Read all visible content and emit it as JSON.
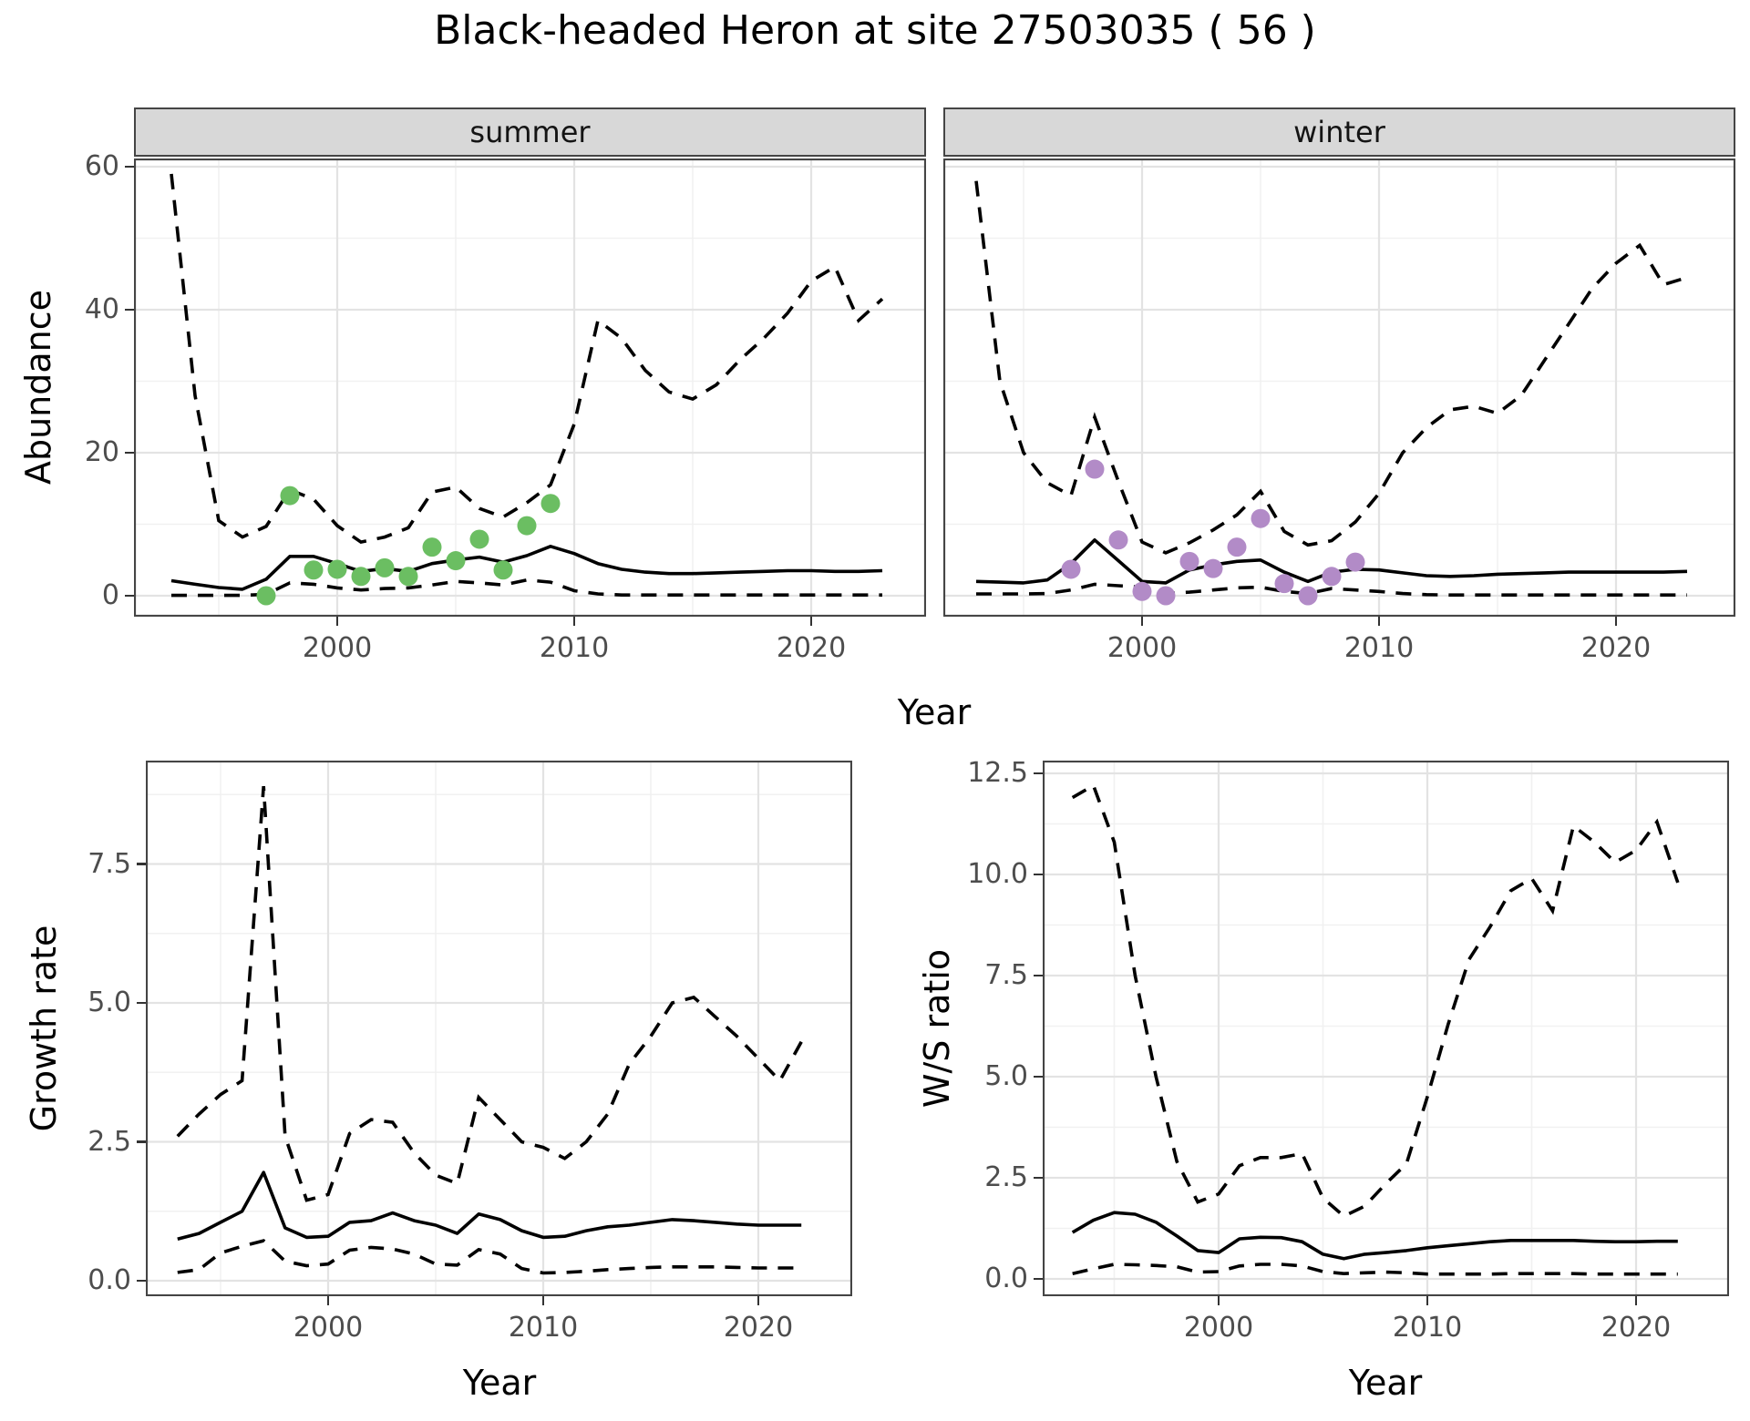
{
  "title": "Black-headed Heron at site 27503035 ( 56 )",
  "colors": {
    "summer_points": "#6BBE62",
    "winter_points": "#B28BC7",
    "line": "#000000",
    "grid_major": "#E3E3E3",
    "grid_minor": "#F1F1F1",
    "panel_border": "#454545",
    "tick_label": "#4D4D4D",
    "strip_bg": "#D8D8D8"
  },
  "chart_data": [
    {
      "type": "line",
      "facet": "summer",
      "xlabel": "Year",
      "ylabel": "Abundance",
      "x_ticks": [
        "2000",
        "2010",
        "2020"
      ],
      "y_ticks": [
        "0",
        "20",
        "40",
        "60"
      ],
      "x_range": [
        1993,
        2023
      ],
      "y_range": [
        0,
        60
      ],
      "years": [
        1993,
        1994,
        1995,
        1996,
        1997,
        1998,
        1999,
        2000,
        2001,
        2002,
        2003,
        2004,
        2005,
        2006,
        2007,
        2008,
        2009,
        2010,
        2011,
        2012,
        2013,
        2014,
        2015,
        2016,
        2017,
        2018,
        2019,
        2020,
        2021,
        2022,
        2023
      ],
      "upper_ci": [
        59,
        28,
        10.5,
        8.2,
        9.7,
        14.8,
        13.5,
        9.8,
        7.5,
        8.2,
        9.5,
        14.5,
        15.2,
        12.2,
        11,
        13,
        15.5,
        24,
        38.5,
        36,
        31.5,
        28.5,
        27.5,
        29.5,
        33,
        36,
        39.5,
        44,
        46,
        38.5,
        41.5
      ],
      "fit": [
        2.1,
        1.6,
        1.15,
        0.9,
        2.3,
        5.5,
        5.5,
        4.5,
        3.4,
        3.8,
        3.4,
        4.5,
        5,
        5.4,
        4.7,
        5.6,
        6.9,
        5.9,
        4.5,
        3.7,
        3.3,
        3.1,
        3.1,
        3.2,
        3.3,
        3.4,
        3.5,
        3.5,
        3.4,
        3.4,
        3.5
      ],
      "lower_ci": [
        0.05,
        0.05,
        0.05,
        0.05,
        0.2,
        1.8,
        1.6,
        1.1,
        0.8,
        1,
        1.1,
        1.5,
        2,
        1.8,
        1.5,
        2.2,
        1.9,
        0.7,
        0.25,
        0.1,
        0.1,
        0.1,
        0.1,
        0.1,
        0.1,
        0.1,
        0.1,
        0.1,
        0.1,
        0.1,
        0.1
      ],
      "obs_years": [
        1997,
        1998,
        1999,
        2000,
        2001,
        2002,
        2003,
        2004,
        2005,
        2006,
        2007,
        2008,
        2009
      ],
      "obs_values": [
        0,
        14,
        3.6,
        3.7,
        2.7,
        3.9,
        2.7,
        6.8,
        4.9,
        7.9,
        3.6,
        9.8,
        12.9
      ]
    },
    {
      "type": "line",
      "facet": "winter",
      "xlabel": "Year",
      "ylabel": "Abundance",
      "x_ticks": [
        "2000",
        "2010",
        "2020"
      ],
      "y_ticks": [
        "0",
        "20",
        "40",
        "60"
      ],
      "x_range": [
        1993,
        2023
      ],
      "y_range": [
        0,
        60
      ],
      "years": [
        1993,
        1994,
        1995,
        1996,
        1997,
        1998,
        1999,
        2000,
        2001,
        2002,
        2003,
        2004,
        2005,
        2006,
        2007,
        2008,
        2009,
        2010,
        2011,
        2012,
        2013,
        2014,
        2015,
        2016,
        2017,
        2018,
        2019,
        2020,
        2021,
        2022,
        2023
      ],
      "upper_ci": [
        58,
        30,
        20,
        15.8,
        14,
        25,
        16,
        7.5,
        6,
        7.4,
        9.2,
        11.3,
        14.6,
        9,
        7.1,
        7.7,
        10.3,
        14.3,
        20,
        23.5,
        26,
        26.5,
        25.5,
        28,
        33,
        38,
        43,
        46.5,
        49,
        43.5,
        44.5
      ],
      "fit": [
        2,
        1.9,
        1.8,
        2.2,
        4.5,
        7.8,
        4.9,
        2,
        1.8,
        3.6,
        4.3,
        4.8,
        5,
        3.3,
        2,
        3.3,
        3.7,
        3.6,
        3.2,
        2.8,
        2.7,
        2.8,
        3,
        3.1,
        3.2,
        3.3,
        3.3,
        3.3,
        3.3,
        3.3,
        3.4
      ],
      "lower_ci": [
        0.25,
        0.25,
        0.25,
        0.3,
        0.8,
        1.6,
        1.4,
        1.2,
        0.3,
        0.5,
        0.8,
        1.1,
        1.2,
        0.6,
        0.3,
        1,
        0.8,
        0.6,
        0.3,
        0.15,
        0.1,
        0.1,
        0.1,
        0.1,
        0.1,
        0.1,
        0.1,
        0.1,
        0.1,
        0.1,
        0.1
      ],
      "obs_years": [
        1997,
        1998,
        1999,
        2000,
        2001,
        2002,
        2003,
        2004,
        2005,
        2006,
        2007,
        2008,
        2009
      ],
      "obs_values": [
        3.7,
        17.7,
        7.8,
        0.6,
        0,
        4.8,
        3.8,
        6.8,
        10.8,
        1.7,
        0,
        2.7,
        4.7
      ]
    },
    {
      "type": "line",
      "facet": "",
      "xlabel": "Year",
      "ylabel": "Growth rate",
      "x_ticks": [
        "2000",
        "2010",
        "2020"
      ],
      "y_ticks": [
        "0.0",
        "2.5",
        "5.0",
        "7.5"
      ],
      "x_range": [
        1993,
        2022
      ],
      "y_range": [
        0,
        7.5
      ],
      "years": [
        1993,
        1994,
        1995,
        1996,
        1997,
        1998,
        1999,
        2000,
        2001,
        2002,
        2003,
        2004,
        2005,
        2006,
        2007,
        2008,
        2009,
        2010,
        2011,
        2012,
        2013,
        2014,
        2015,
        2016,
        2017,
        2018,
        2019,
        2020,
        2021,
        2022
      ],
      "upper_ci": [
        2.6,
        3,
        3.35,
        3.6,
        8.9,
        2.6,
        1.45,
        1.55,
        2.65,
        2.9,
        2.85,
        2.3,
        1.9,
        1.75,
        3.3,
        2.9,
        2.5,
        2.4,
        2.2,
        2.5,
        3,
        3.9,
        4.4,
        5,
        5.1,
        4.75,
        4.4,
        4,
        3.6,
        4.3
      ],
      "fit": [
        0.75,
        0.85,
        1.05,
        1.25,
        1.95,
        0.95,
        0.78,
        0.8,
        1.05,
        1.08,
        1.22,
        1.08,
        1,
        0.85,
        1.2,
        1.1,
        0.9,
        0.78,
        0.8,
        0.9,
        0.97,
        1,
        1.05,
        1.1,
        1.08,
        1.05,
        1.02,
        1,
        1,
        1
      ],
      "lower_ci": [
        0.15,
        0.2,
        0.5,
        0.62,
        0.72,
        0.35,
        0.27,
        0.3,
        0.55,
        0.6,
        0.57,
        0.48,
        0.3,
        0.28,
        0.56,
        0.48,
        0.22,
        0.14,
        0.15,
        0.17,
        0.2,
        0.22,
        0.24,
        0.25,
        0.25,
        0.25,
        0.24,
        0.23,
        0.23,
        0.23
      ],
      "obs_years": [],
      "obs_values": []
    },
    {
      "type": "line",
      "facet": "",
      "xlabel": "Year",
      "ylabel": "W/S ratio",
      "x_ticks": [
        "2000",
        "2010",
        "2020"
      ],
      "y_ticks": [
        "0.0",
        "2.5",
        "5.0",
        "7.5",
        "10.0",
        "12.5"
      ],
      "x_range": [
        1993,
        2022
      ],
      "y_range": [
        0,
        12.5
      ],
      "years": [
        1993,
        1994,
        1995,
        1996,
        1997,
        1998,
        1999,
        2000,
        2001,
        2002,
        2003,
        2004,
        2005,
        2006,
        2007,
        2008,
        2009,
        2010,
        2011,
        2012,
        2013,
        2014,
        2015,
        2016,
        2017,
        2018,
        2019,
        2020,
        2021,
        2022
      ],
      "upper_ci": [
        11.9,
        12.2,
        10.8,
        7.5,
        5,
        2.9,
        1.9,
        2.1,
        2.8,
        3,
        3,
        3.1,
        2,
        1.55,
        1.8,
        2.35,
        2.85,
        4.5,
        6.3,
        7.9,
        8.7,
        9.6,
        9.9,
        9.1,
        11.2,
        10.8,
        10.3,
        10.6,
        11.3,
        9.8
      ],
      "fit": [
        1.15,
        1.45,
        1.64,
        1.6,
        1.4,
        1.06,
        0.7,
        0.65,
        0.99,
        1.03,
        1.02,
        0.92,
        0.61,
        0.5,
        0.61,
        0.65,
        0.7,
        0.77,
        0.82,
        0.87,
        0.92,
        0.95,
        0.95,
        0.95,
        0.95,
        0.93,
        0.92,
        0.92,
        0.93,
        0.93
      ],
      "lower_ci": [
        0.13,
        0.25,
        0.36,
        0.35,
        0.33,
        0.3,
        0.17,
        0.18,
        0.32,
        0.36,
        0.36,
        0.32,
        0.18,
        0.13,
        0.15,
        0.17,
        0.15,
        0.12,
        0.12,
        0.12,
        0.12,
        0.13,
        0.13,
        0.13,
        0.13,
        0.12,
        0.12,
        0.12,
        0.12,
        0.12
      ],
      "obs_years": [],
      "obs_values": []
    }
  ]
}
